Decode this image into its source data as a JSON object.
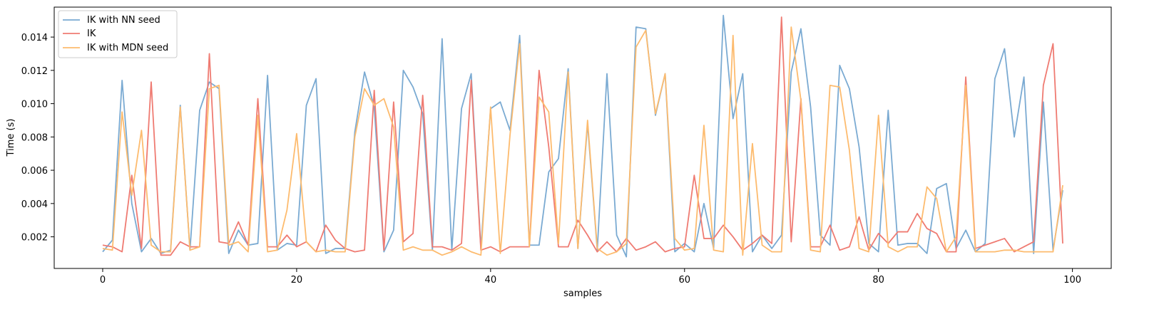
{
  "chart_data": {
    "type": "line",
    "title": "",
    "xlabel": "samples",
    "ylabel": "Time (s)",
    "xlim": [
      -5,
      104
    ],
    "ylim": [
      0.0001,
      0.0158
    ],
    "xticks": [
      0,
      20,
      40,
      60,
      80,
      100
    ],
    "yticks": [
      0.002,
      0.004,
      0.006,
      0.008,
      0.01,
      0.012,
      0.014
    ],
    "ytick_labels": [
      "0.002",
      "0.004",
      "0.006",
      "0.008",
      "0.010",
      "0.012",
      "0.014"
    ],
    "grid": false,
    "legend_position": "top-left",
    "series": [
      {
        "name": "IK with NN seed",
        "color": "#7aaad2",
        "values": [
          0.0011,
          0.0018,
          0.0114,
          0.004,
          0.0011,
          0.0019,
          0.001,
          0.0012,
          0.0099,
          0.0012,
          0.0096,
          0.0113,
          0.0109,
          0.001,
          0.0024,
          0.0015,
          0.0016,
          0.0117,
          0.0012,
          0.0016,
          0.0015,
          0.0099,
          0.0115,
          0.001,
          0.0013,
          0.0013,
          0.0083,
          0.0119,
          0.0098,
          0.0011,
          0.0024,
          0.012,
          0.011,
          0.0094,
          0.0012,
          0.0139,
          0.0012,
          0.0097,
          0.0118,
          0.0013,
          0.0097,
          0.0101,
          0.0084,
          0.0141,
          0.0015,
          0.0015,
          0.0059,
          0.0067,
          0.0121,
          0.0013,
          0.0088,
          0.0012,
          0.0118,
          0.0021,
          0.0008,
          0.0146,
          0.0145,
          0.0093,
          0.0118,
          0.0011,
          0.0016,
          0.0011,
          0.004,
          0.0013,
          0.0153,
          0.0091,
          0.0118,
          0.0011,
          0.0021,
          0.0013,
          0.0021,
          0.0119,
          0.0145,
          0.0098,
          0.0021,
          0.0015,
          0.0123,
          0.0109,
          0.0074,
          0.0016,
          0.0011,
          0.0096,
          0.0015,
          0.0016,
          0.0016,
          0.001,
          0.0049,
          0.0052,
          0.0013,
          0.0024,
          0.0011,
          0.0016,
          0.0115,
          0.0133,
          0.008,
          0.0116,
          0.001,
          0.0101,
          0.0012,
          0.0048
        ]
      },
      {
        "name": "IK",
        "color": "#ef7b72",
        "values": [
          0.0015,
          0.0014,
          0.0011,
          0.0057,
          0.0013,
          0.0113,
          0.0009,
          0.0009,
          0.0017,
          0.0014,
          0.0014,
          0.013,
          0.0017,
          0.0016,
          0.0029,
          0.0015,
          0.0103,
          0.0014,
          0.0014,
          0.0021,
          0.0014,
          0.0017,
          0.0011,
          0.0027,
          0.0018,
          0.0013,
          0.0011,
          0.0012,
          0.0108,
          0.0012,
          0.0101,
          0.0017,
          0.0022,
          0.0105,
          0.0014,
          0.0014,
          0.0012,
          0.0016,
          0.0114,
          0.0012,
          0.0014,
          0.0011,
          0.0014,
          0.0014,
          0.0014,
          0.012,
          0.0074,
          0.0014,
          0.0014,
          0.003,
          0.0021,
          0.0011,
          0.0017,
          0.0011,
          0.0019,
          0.0012,
          0.0014,
          0.0017,
          0.0011,
          0.0013,
          0.0014,
          0.0057,
          0.0019,
          0.0019,
          0.0027,
          0.002,
          0.0012,
          0.0016,
          0.0021,
          0.0016,
          0.0152,
          0.0017,
          0.0103,
          0.0014,
          0.0014,
          0.0027,
          0.0012,
          0.0014,
          0.0032,
          0.0012,
          0.0022,
          0.0016,
          0.0023,
          0.0023,
          0.0034,
          0.0025,
          0.0022,
          0.0011,
          0.0011,
          0.0116,
          0.0013,
          0.0015,
          0.0017,
          0.0019,
          0.0011,
          0.0014,
          0.0017,
          0.0111,
          0.0136,
          0.0016
        ]
      },
      {
        "name": "IK with MDN seed",
        "color": "#fdbb6e",
        "values": [
          0.0013,
          0.0012,
          0.0095,
          0.0045,
          0.0084,
          0.0015,
          0.0011,
          0.0011,
          0.0098,
          0.0012,
          0.0014,
          0.0109,
          0.0111,
          0.0015,
          0.0017,
          0.0011,
          0.0093,
          0.0011,
          0.0012,
          0.0036,
          0.0082,
          0.0017,
          0.0011,
          0.0012,
          0.0011,
          0.0011,
          0.008,
          0.0109,
          0.0099,
          0.0103,
          0.0086,
          0.0012,
          0.0014,
          0.0012,
          0.0012,
          0.0009,
          0.0011,
          0.0014,
          0.0011,
          0.0009,
          0.0098,
          0.001,
          0.0081,
          0.0136,
          0.0014,
          0.0104,
          0.0095,
          0.0016,
          0.0119,
          0.0013,
          0.009,
          0.0013,
          0.0009,
          0.0011,
          0.0016,
          0.0134,
          0.0144,
          0.0094,
          0.0118,
          0.0019,
          0.0012,
          0.0013,
          0.0087,
          0.0012,
          0.0011,
          0.0141,
          0.0009,
          0.0076,
          0.0015,
          0.0011,
          0.0011,
          0.0146,
          0.0102,
          0.0012,
          0.0011,
          0.0111,
          0.011,
          0.0072,
          0.0013,
          0.0011,
          0.0093,
          0.0014,
          0.0011,
          0.0014,
          0.0014,
          0.005,
          0.0043,
          0.0011,
          0.002,
          0.0111,
          0.0011,
          0.0011,
          0.0011,
          0.0012,
          0.0012,
          0.0011,
          0.0011,
          0.0011,
          0.0011,
          0.0051
        ]
      }
    ]
  }
}
